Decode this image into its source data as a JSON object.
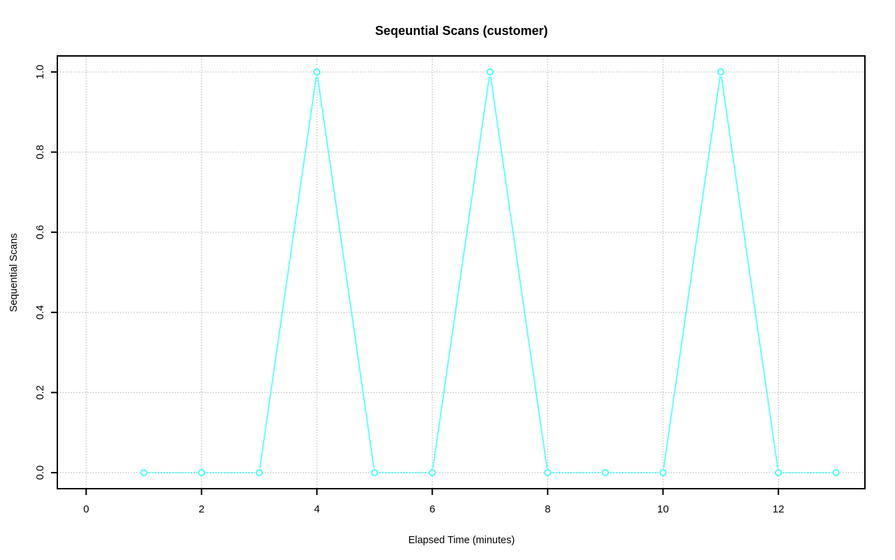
{
  "figure": {
    "title": "Seqeuntial Scans (customer)",
    "xlabel": "Elapsed Time (minutes)",
    "ylabel": "Sequential Scans"
  },
  "colors": {
    "series": "#00FFFF",
    "grid": "#C4C4C4",
    "axis": "#000000",
    "background": "#FFFFFF",
    "text": "#000000"
  },
  "chart_data": {
    "type": "line",
    "title": "Seqeuntial Scans (customer)",
    "xlabel": "Elapsed Time (minutes)",
    "ylabel": "Sequential Scans",
    "series": [
      {
        "name": "customer sequential scans",
        "x": [
          1,
          2,
          3,
          4,
          5,
          6,
          7,
          8,
          9,
          10,
          11,
          12,
          13
        ],
        "y": [
          0,
          0,
          0,
          1,
          0,
          0,
          1,
          0,
          0,
          0,
          1,
          0,
          0
        ],
        "color": "#00FFFF",
        "marker": "open-circle",
        "line_style": "solid-diagonal-dashed-flat"
      }
    ],
    "xticks": [
      0,
      2,
      4,
      6,
      8,
      10,
      12
    ],
    "xtick_labels": [
      "0",
      "2",
      "4",
      "6",
      "8",
      "10",
      "12"
    ],
    "yticks": [
      0.0,
      0.2,
      0.4,
      0.6,
      0.8,
      1.0
    ],
    "ytick_labels": [
      "0.0",
      "0.2",
      "0.4",
      "0.6",
      "0.8",
      "1.0"
    ],
    "xlim": [
      -0.5,
      13.5
    ],
    "ylim": [
      -0.04,
      1.04
    ],
    "grid": true,
    "grid_style": "dotted",
    "legend": "none"
  }
}
